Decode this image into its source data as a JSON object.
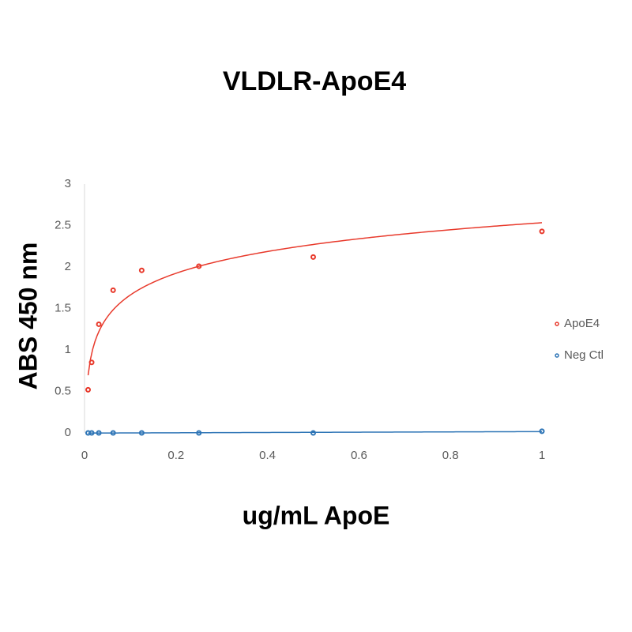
{
  "chart_data": {
    "type": "scatter",
    "title": "VLDLR-ApoE4",
    "x_label": "ug/mL ApoE",
    "y_label": "ABS 450 nm",
    "x": [
      0.0078,
      0.0156,
      0.03125,
      0.0625,
      0.125,
      0.25,
      0.5,
      1
    ],
    "series": [
      {
        "name": "ApoE4",
        "color": "#e8392b",
        "values": [
          0.52,
          0.85,
          1.31,
          1.72,
          1.96,
          2.01,
          2.12,
          2.43
        ],
        "trendline": "logarithmic"
      },
      {
        "name": "Neg Ctl",
        "color": "#2e75b6",
        "values": [
          0,
          0,
          0,
          0,
          0,
          0,
          0,
          0.02
        ],
        "trendline": "linear"
      }
    ],
    "xlim": [
      0,
      1
    ],
    "xticks": [
      0,
      0.2,
      0.4,
      0.6,
      0.8,
      1
    ],
    "ylim": [
      0,
      3
    ],
    "yticks": [
      0,
      0.5,
      1,
      1.5,
      2,
      2.5,
      3
    ],
    "grid": false,
    "legend": "right"
  }
}
